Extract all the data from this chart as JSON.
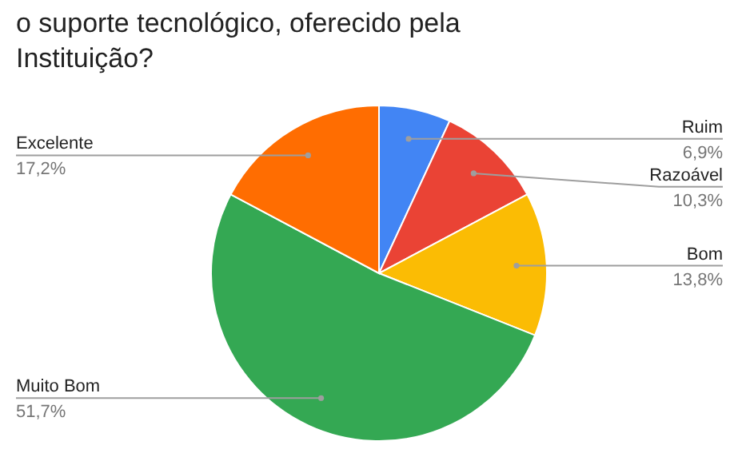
{
  "chart_data": {
    "type": "pie",
    "title": "o suporte tecnológico, oferecido pela Instituição?",
    "categories": [
      "Ruim",
      "Razoável",
      "Bom",
      "Muito Bom",
      "Excelente"
    ],
    "values": [
      6.9,
      10.3,
      13.8,
      51.7,
      17.2
    ],
    "value_labels": [
      "6,9%",
      "10,3%",
      "13,8%",
      "51,7%",
      "17,2%"
    ],
    "colors": [
      "#4285f4",
      "#ea4335",
      "#fbbc04",
      "#34a853",
      "#ff6d01"
    ]
  }
}
